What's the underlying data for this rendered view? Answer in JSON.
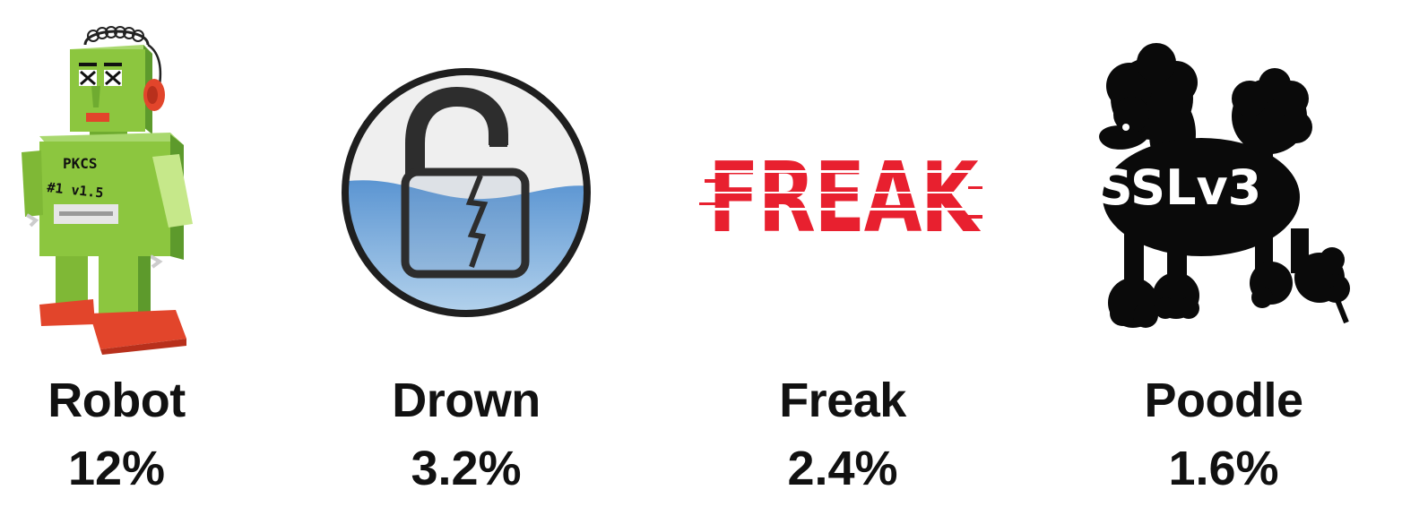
{
  "vulnerabilities": [
    {
      "name": "Robot",
      "percent": "12%",
      "icon": "robot-icon",
      "logo_text": [
        "PKCS",
        "#1 v1.5"
      ]
    },
    {
      "name": "Drown",
      "percent": "3.2%",
      "icon": "broken-padlock-icon"
    },
    {
      "name": "Freak",
      "percent": "2.4%",
      "icon": "freak-logo",
      "logo_text": "FREAK"
    },
    {
      "name": "Poodle",
      "percent": "1.6%",
      "icon": "poodle-icon",
      "logo_text": "SSLv3"
    }
  ],
  "colors": {
    "robot_green": "#8cc63f",
    "robot_red": "#e2452b",
    "drown_water": "#6fa3d6",
    "freak_red": "#e8202f",
    "poodle_black": "#0a0a0a",
    "text": "#111111"
  }
}
